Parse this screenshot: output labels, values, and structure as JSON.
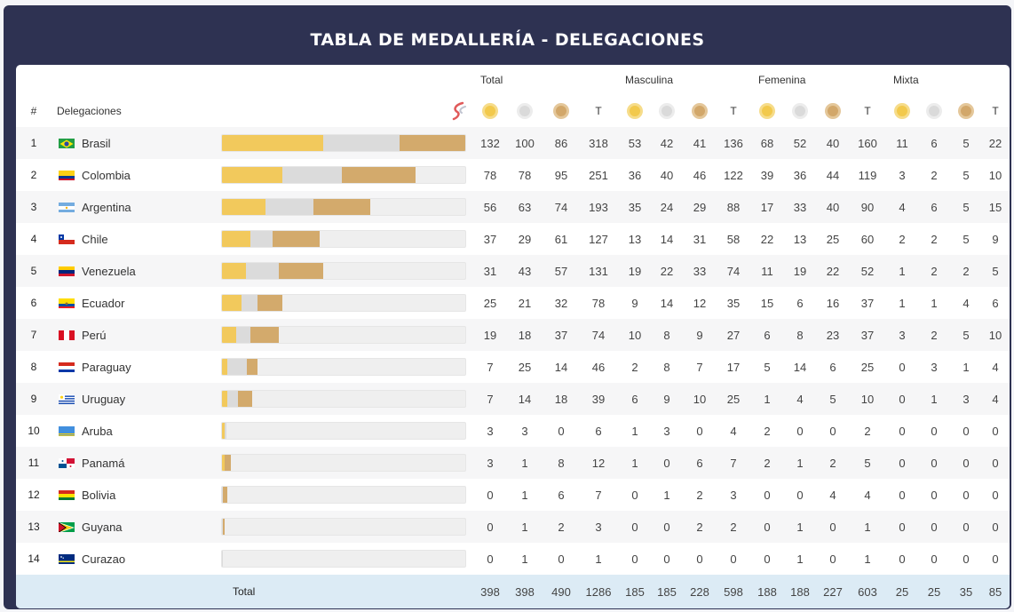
{
  "title": "TABLA DE MEDALLERÍA - DELEGACIONES",
  "groups": [
    "Total",
    "Masculina",
    "Femenina",
    "Mixta"
  ],
  "headers": {
    "rank": "#",
    "delegation": "Delegaciones",
    "t": "T"
  },
  "colors": {
    "gold": "#f2c95c",
    "silver": "#dbdbdb",
    "bronze": "#d3aa6c",
    "frame": "#2e3252",
    "total_bg": "#dcebf5"
  },
  "bar_scale_max": 318,
  "rows": [
    {
      "rank": "1",
      "name": "Brasil",
      "flag": "brasil",
      "total": [
        "132",
        "100",
        "86",
        "318"
      ],
      "masc": [
        "53",
        "42",
        "41",
        "136"
      ],
      "fem": [
        "68",
        "52",
        "40",
        "160"
      ],
      "mix": [
        "11",
        "6",
        "5",
        "22"
      ]
    },
    {
      "rank": "2",
      "name": "Colombia",
      "flag": "colombia",
      "total": [
        "78",
        "78",
        "95",
        "251"
      ],
      "masc": [
        "36",
        "40",
        "46",
        "122"
      ],
      "fem": [
        "39",
        "36",
        "44",
        "119"
      ],
      "mix": [
        "3",
        "2",
        "5",
        "10"
      ]
    },
    {
      "rank": "3",
      "name": "Argentina",
      "flag": "argentina",
      "total": [
        "56",
        "63",
        "74",
        "193"
      ],
      "masc": [
        "35",
        "24",
        "29",
        "88"
      ],
      "fem": [
        "17",
        "33",
        "40",
        "90"
      ],
      "mix": [
        "4",
        "6",
        "5",
        "15"
      ]
    },
    {
      "rank": "4",
      "name": "Chile",
      "flag": "chile",
      "total": [
        "37",
        "29",
        "61",
        "127"
      ],
      "masc": [
        "13",
        "14",
        "31",
        "58"
      ],
      "fem": [
        "22",
        "13",
        "25",
        "60"
      ],
      "mix": [
        "2",
        "2",
        "5",
        "9"
      ]
    },
    {
      "rank": "5",
      "name": "Venezuela",
      "flag": "venezuela",
      "total": [
        "31",
        "43",
        "57",
        "131"
      ],
      "masc": [
        "19",
        "22",
        "33",
        "74"
      ],
      "fem": [
        "11",
        "19",
        "22",
        "52"
      ],
      "mix": [
        "1",
        "2",
        "2",
        "5"
      ]
    },
    {
      "rank": "6",
      "name": "Ecuador",
      "flag": "ecuador",
      "total": [
        "25",
        "21",
        "32",
        "78"
      ],
      "masc": [
        "9",
        "14",
        "12",
        "35"
      ],
      "fem": [
        "15",
        "6",
        "16",
        "37"
      ],
      "mix": [
        "1",
        "1",
        "4",
        "6"
      ]
    },
    {
      "rank": "7",
      "name": "Perú",
      "flag": "peru",
      "total": [
        "19",
        "18",
        "37",
        "74"
      ],
      "masc": [
        "10",
        "8",
        "9",
        "27"
      ],
      "fem": [
        "6",
        "8",
        "23",
        "37"
      ],
      "mix": [
        "3",
        "2",
        "5",
        "10"
      ]
    },
    {
      "rank": "8",
      "name": "Paraguay",
      "flag": "paraguay",
      "total": [
        "7",
        "25",
        "14",
        "46"
      ],
      "masc": [
        "2",
        "8",
        "7",
        "17"
      ],
      "fem": [
        "5",
        "14",
        "6",
        "25"
      ],
      "mix": [
        "0",
        "3",
        "1",
        "4"
      ]
    },
    {
      "rank": "9",
      "name": "Uruguay",
      "flag": "uruguay",
      "total": [
        "7",
        "14",
        "18",
        "39"
      ],
      "masc": [
        "6",
        "9",
        "10",
        "25"
      ],
      "fem": [
        "1",
        "4",
        "5",
        "10"
      ],
      "mix": [
        "0",
        "1",
        "3",
        "4"
      ]
    },
    {
      "rank": "10",
      "name": "Aruba",
      "flag": "aruba",
      "total": [
        "3",
        "3",
        "0",
        "6"
      ],
      "masc": [
        "1",
        "3",
        "0",
        "4"
      ],
      "fem": [
        "2",
        "0",
        "0",
        "2"
      ],
      "mix": [
        "0",
        "0",
        "0",
        "0"
      ]
    },
    {
      "rank": "11",
      "name": "Panamá",
      "flag": "panama",
      "total": [
        "3",
        "1",
        "8",
        "12"
      ],
      "masc": [
        "1",
        "0",
        "6",
        "7"
      ],
      "fem": [
        "2",
        "1",
        "2",
        "5"
      ],
      "mix": [
        "0",
        "0",
        "0",
        "0"
      ]
    },
    {
      "rank": "12",
      "name": "Bolivia",
      "flag": "bolivia",
      "total": [
        "0",
        "1",
        "6",
        "7"
      ],
      "masc": [
        "0",
        "1",
        "2",
        "3"
      ],
      "fem": [
        "0",
        "0",
        "4",
        "4"
      ],
      "mix": [
        "0",
        "0",
        "0",
        "0"
      ]
    },
    {
      "rank": "13",
      "name": "Guyana",
      "flag": "guyana",
      "total": [
        "0",
        "1",
        "2",
        "3"
      ],
      "masc": [
        "0",
        "0",
        "2",
        "2"
      ],
      "fem": [
        "0",
        "1",
        "0",
        "1"
      ],
      "mix": [
        "0",
        "0",
        "0",
        "0"
      ]
    },
    {
      "rank": "14",
      "name": "Curazao",
      "flag": "curazao",
      "total": [
        "0",
        "1",
        "0",
        "1"
      ],
      "masc": [
        "0",
        "0",
        "0",
        "0"
      ],
      "fem": [
        "0",
        "1",
        "0",
        "1"
      ],
      "mix": [
        "0",
        "0",
        "0",
        "0"
      ]
    }
  ],
  "totals": {
    "label": "Total",
    "values": [
      "398",
      "398",
      "490",
      "1286",
      "185",
      "185",
      "228",
      "598",
      "188",
      "188",
      "227",
      "603",
      "25",
      "25",
      "35",
      "85"
    ]
  }
}
